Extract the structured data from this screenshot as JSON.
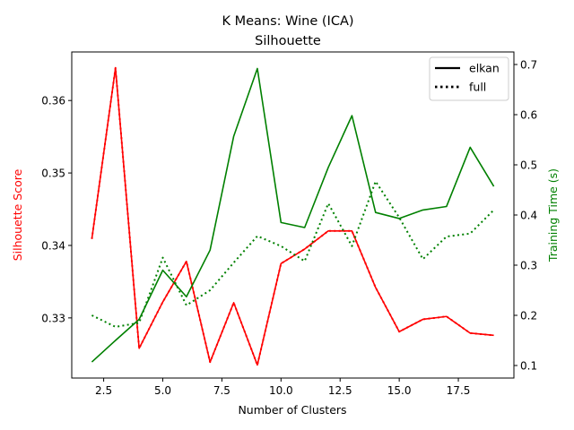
{
  "chart_data": {
    "type": "line",
    "title": "K Means: Wine (ICA)",
    "subtitle": "Silhouette",
    "xlabel": "Number of Clusters",
    "ylabel_left": "Silhouette Score",
    "ylabel_right": "Training Time (s)",
    "colors": {
      "left": "#ff0000",
      "right": "#008000"
    },
    "x": [
      2,
      3,
      4,
      5,
      6,
      7,
      8,
      9,
      10,
      11,
      12,
      13,
      14,
      15,
      16,
      17,
      18,
      19
    ],
    "xlim": [
      1.15,
      19.85
    ],
    "xticks": [
      2.5,
      5.0,
      7.5,
      10.0,
      12.5,
      15.0,
      17.5
    ],
    "xtick_labels": [
      "2.5",
      "5.0",
      "7.5",
      "10.0",
      "12.5",
      "15.0",
      "17.5"
    ],
    "ylim_left": [
      0.3217,
      0.3667
    ],
    "yticks_left": [
      0.33,
      0.34,
      0.35,
      0.36
    ],
    "ytick_labels_left": [
      "0.33",
      "0.34",
      "0.35",
      "0.36"
    ],
    "ylim_right": [
      0.075,
      0.725
    ],
    "yticks_right": [
      0.1,
      0.2,
      0.3,
      0.4,
      0.5,
      0.6,
      0.7
    ],
    "ytick_labels_right": [
      "0.1",
      "0.2",
      "0.3",
      "0.4",
      "0.5",
      "0.6",
      "0.7"
    ],
    "grid": false,
    "legend_position": "top-right",
    "legend": [
      {
        "label": "elkan",
        "style": "solid"
      },
      {
        "label": "full",
        "style": "dotted"
      }
    ],
    "series": [
      {
        "axis": "left",
        "style": "solid",
        "color": "#ff0000",
        "values": [
          0.3409,
          0.3645,
          0.3258,
          0.3322,
          0.3378,
          0.3239,
          0.3321,
          0.3235,
          0.3375,
          0.3395,
          0.342,
          0.342,
          0.3342,
          0.3281,
          0.3298,
          0.3302,
          0.3279,
          0.3276
        ]
      },
      {
        "axis": "left",
        "style": "dotted",
        "color": "#ff0000",
        "values": [
          0.3409,
          0.3645,
          0.3258,
          0.3322,
          0.3378,
          0.3239,
          0.3321,
          0.3235,
          0.3375,
          0.3395,
          0.342,
          0.342,
          0.3342,
          0.3281,
          0.3298,
          0.3302,
          0.3279,
          0.3276
        ]
      },
      {
        "axis": "right",
        "style": "solid",
        "color": "#008000",
        "values": [
          0.107,
          0.15,
          0.192,
          0.29,
          0.237,
          0.33,
          0.557,
          0.692,
          0.385,
          0.375,
          0.495,
          0.598,
          0.405,
          0.393,
          0.41,
          0.417,
          0.535,
          0.457
        ]
      },
      {
        "axis": "right",
        "style": "dotted",
        "color": "#008000",
        "values": [
          0.2,
          0.177,
          0.185,
          0.315,
          0.22,
          0.25,
          0.305,
          0.358,
          0.338,
          0.308,
          0.423,
          0.338,
          0.467,
          0.395,
          0.312,
          0.357,
          0.363,
          0.41
        ]
      }
    ]
  }
}
